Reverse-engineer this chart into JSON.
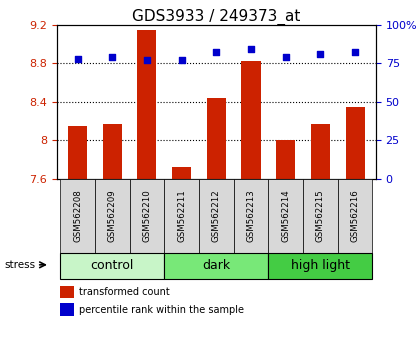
{
  "title": "GDS3933 / 249373_at",
  "samples": [
    "GSM562208",
    "GSM562209",
    "GSM562210",
    "GSM562211",
    "GSM562212",
    "GSM562213",
    "GSM562214",
    "GSM562215",
    "GSM562216"
  ],
  "transformed_counts": [
    8.15,
    8.17,
    9.15,
    7.72,
    8.44,
    8.82,
    8.0,
    8.17,
    8.35
  ],
  "percentile_ranks": [
    78,
    79,
    77,
    77,
    82,
    84,
    79,
    81,
    82
  ],
  "ylim_left": [
    7.6,
    9.2
  ],
  "ylim_right": [
    0,
    100
  ],
  "yticks_left": [
    7.6,
    8.0,
    8.4,
    8.8,
    9.2
  ],
  "yticks_right": [
    0,
    25,
    50,
    75,
    100
  ],
  "ytick_labels_left": [
    "7.6",
    "8",
    "8.4",
    "8.8",
    "9.2"
  ],
  "ytick_labels_right": [
    "0",
    "25",
    "50",
    "75",
    "100%"
  ],
  "groups": [
    {
      "label": "control",
      "start": 0,
      "end": 3,
      "color": "#c8f5c8"
    },
    {
      "label": "dark",
      "start": 3,
      "end": 6,
      "color": "#78e878"
    },
    {
      "label": "high light",
      "start": 6,
      "end": 9,
      "color": "#44cc44"
    }
  ],
  "bar_color": "#cc2200",
  "dot_color": "#0000cc",
  "bar_width": 0.55,
  "stress_label": "stress",
  "legend_bar_label": "transformed count",
  "legend_dot_label": "percentile rank within the sample",
  "title_fontsize": 11,
  "tick_fontsize": 8,
  "label_fontsize": 8,
  "group_fontsize": 9,
  "left_tick_color": "#cc2200",
  "right_tick_color": "#0000cc",
  "sample_bg_color": "#d8d8d8",
  "plot_bg": "#ffffff",
  "grid_color": "#000000",
  "grid_yticks": [
    8.0,
    8.4,
    8.8
  ]
}
